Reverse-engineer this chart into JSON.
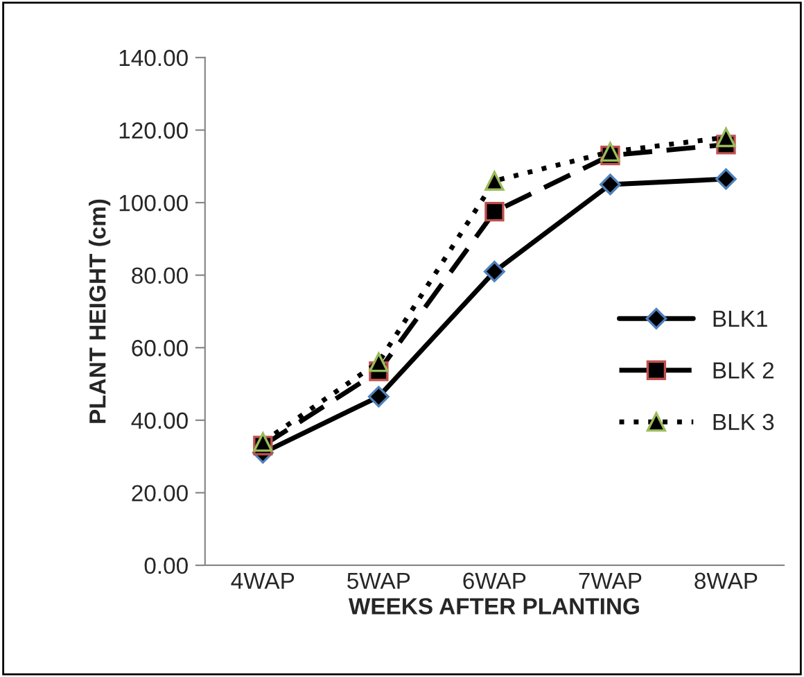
{
  "chart_data": {
    "type": "line",
    "xlabel": "WEEKS AFTER PLANTING",
    "ylabel": "PLANT HEIGHT (cm)",
    "categories": [
      "4WAP",
      "5WAP",
      "6WAP",
      "7WAP",
      "8WAP"
    ],
    "series": [
      {
        "name": "BLK1",
        "color": "#000000",
        "marker": "diamond",
        "line_style": "solid",
        "values": [
          31,
          46.5,
          81,
          105,
          106.5
        ]
      },
      {
        "name": "BLK 2",
        "color": "#000000",
        "marker": "square",
        "line_style": "dashed",
        "values": [
          33,
          53.5,
          97.5,
          113,
          116
        ]
      },
      {
        "name": "BLK 3",
        "color": "#000000",
        "marker": "triangle",
        "line_style": "dotted",
        "values": [
          34,
          56,
          106,
          114,
          118
        ]
      }
    ],
    "ylim": [
      0,
      140
    ],
    "yticks": [
      {
        "value": 0,
        "label": "0.00"
      },
      {
        "value": 20,
        "label": "20.00"
      },
      {
        "value": 40,
        "label": "40.00"
      },
      {
        "value": 60,
        "label": "60.00"
      },
      {
        "value": 80,
        "label": "80.00"
      },
      {
        "value": 100,
        "label": "100.00"
      },
      {
        "value": 120,
        "label": "120.00"
      },
      {
        "value": 140,
        "label": "140.00"
      }
    ],
    "grid": false,
    "legend": "right"
  }
}
